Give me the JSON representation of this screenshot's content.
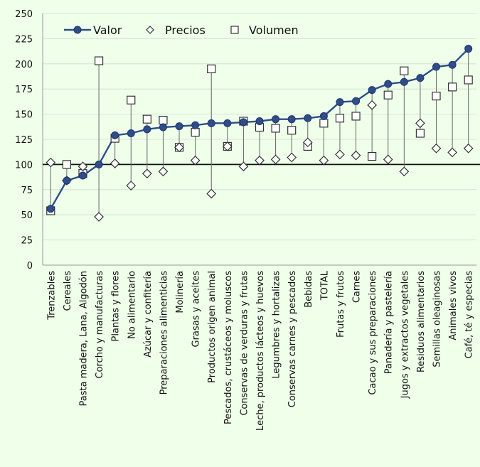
{
  "chart_data": {
    "type": "line",
    "title": "",
    "xlabel": "",
    "ylabel": "",
    "ylim": [
      0,
      250
    ],
    "yticks": [
      0,
      25,
      50,
      75,
      100,
      125,
      150,
      175,
      200,
      225,
      250
    ],
    "reference_line": 100,
    "legend_position": "top-left",
    "categories": [
      "Trenzables",
      "Cereales",
      "Pasta madera, Lana, Algodón",
      "Corcho y manufacturas",
      "Plantas y flores",
      "No alimentario",
      "Azúcar y confitería",
      "Preparaciones alimenticias",
      "Molinería",
      "Grasas y aceites",
      "Productos origen animal",
      "Pescados, crustáceos y moluscos",
      "Conservas de verduras y frutas",
      "Leche, productos lácteos y huevos",
      "Legumbres y hortalizas",
      "Conservas carnes y pescados",
      "Bebidas",
      "TOTAL",
      "Frutas y frutos",
      "Carnes",
      "Cacao y sus preparaciones",
      "Panadería y pastelería",
      "Jugos y extractos vegetales",
      "Residuos alimentarios",
      "Semillas oleaginosas",
      "Animales vivos",
      "Café, té y especias"
    ],
    "series": [
      {
        "name": "Valor",
        "marker": "circle",
        "color": "#2e4d8a",
        "values": [
          56,
          84,
          89,
          100,
          129,
          131,
          135,
          137,
          138,
          139,
          141,
          141,
          142,
          143,
          145,
          145,
          146,
          148,
          162,
          163,
          174,
          180,
          182,
          186,
          197,
          199,
          215
        ]
      },
      {
        "name": "Precios",
        "marker": "diamond",
        "color": "#333333",
        "values": [
          102,
          84,
          98,
          48,
          101,
          79,
          91,
          93,
          117,
          104,
          71,
          118,
          98,
          104,
          105,
          107,
          122,
          104,
          110,
          109,
          159,
          105,
          93,
          141,
          116,
          112,
          116
        ]
      },
      {
        "name": "Volumen",
        "marker": "square",
        "color": "#333333",
        "values": [
          54,
          100,
          91,
          203,
          126,
          164,
          145,
          144,
          117,
          132,
          195,
          118,
          143,
          137,
          136,
          134,
          118,
          141,
          146,
          148,
          108,
          169,
          193,
          131,
          168,
          177,
          184
        ]
      }
    ]
  }
}
